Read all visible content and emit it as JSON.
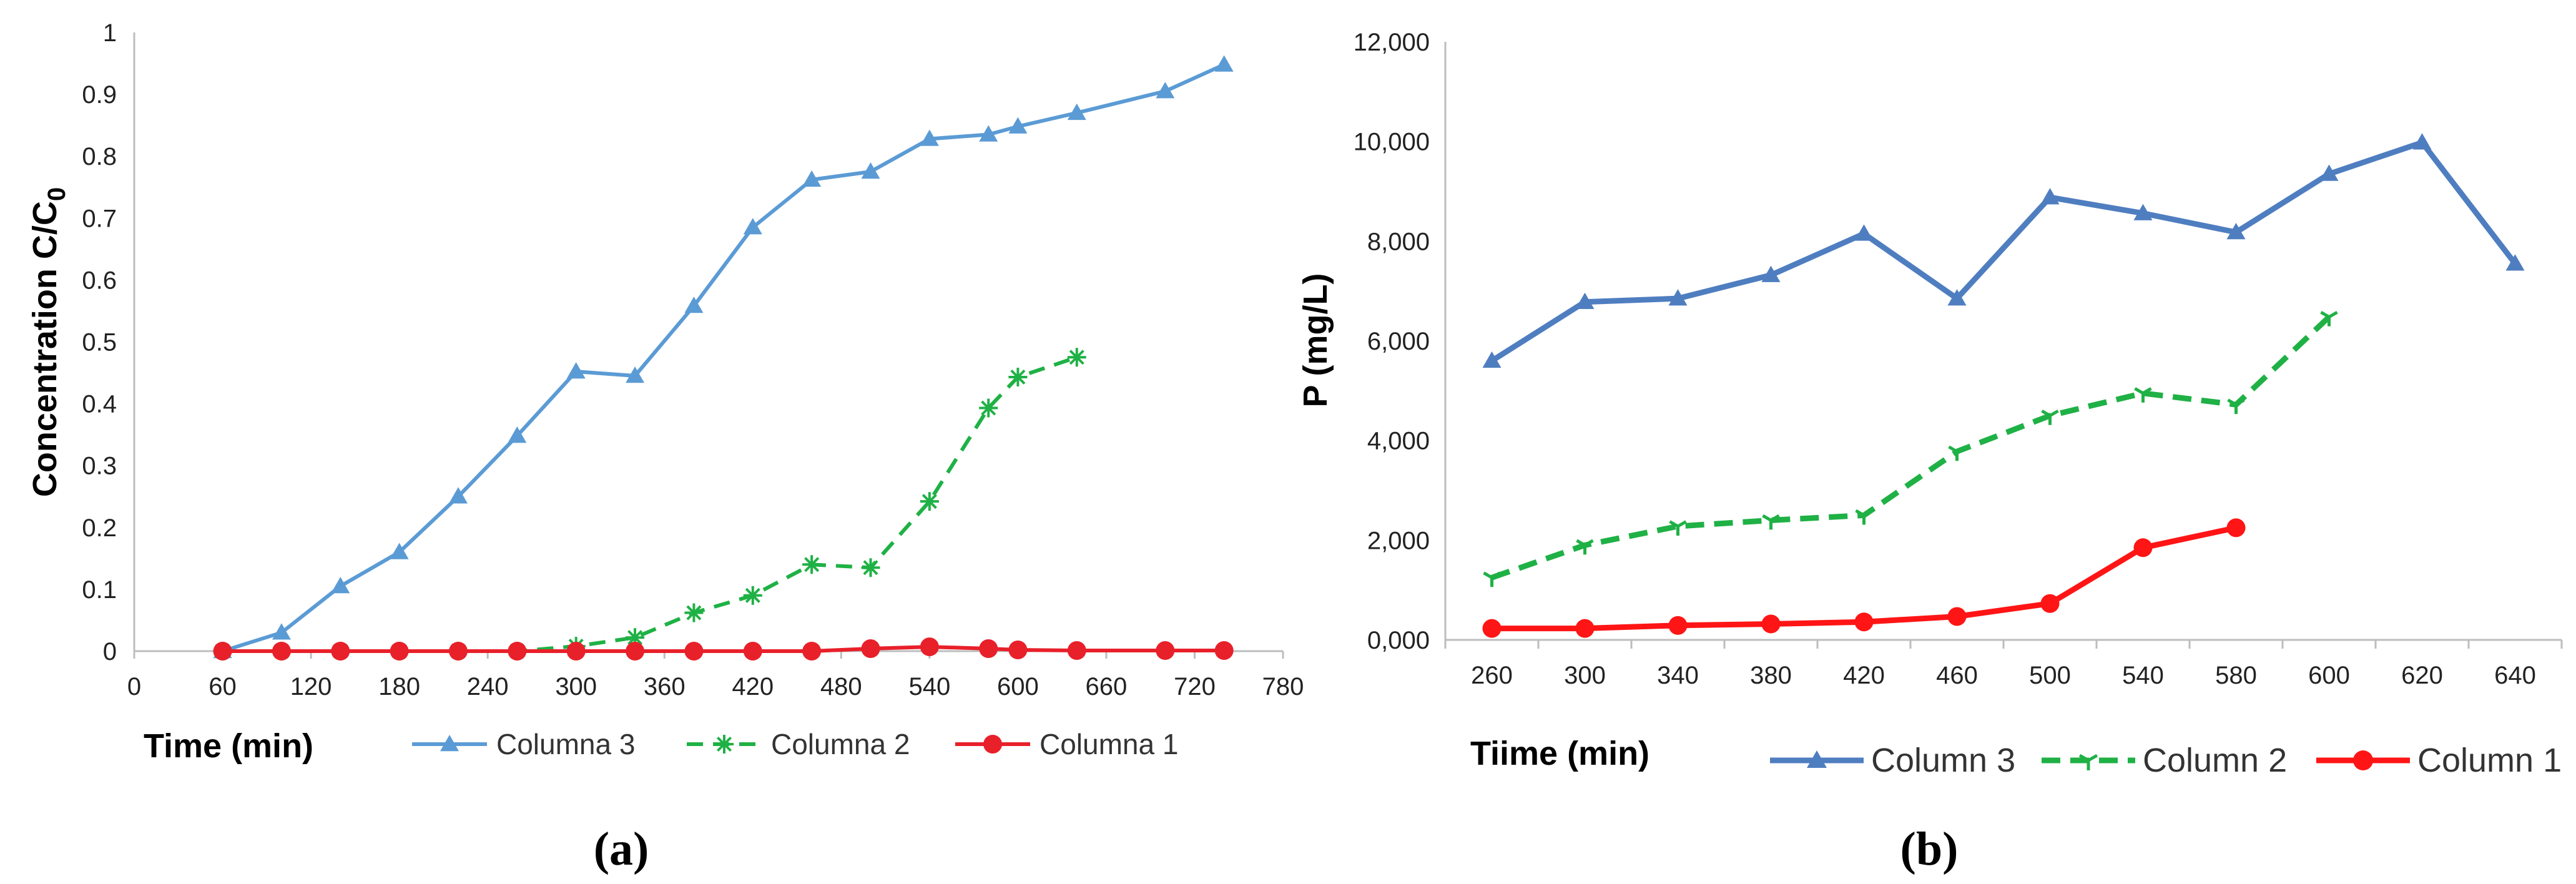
{
  "chart_data": [
    {
      "type": "line",
      "panel_label": "(a)",
      "xlabel": "Time (min)",
      "ylabel": "Concentration C/C",
      "ylabel_sub": "0",
      "xlim": [
        0,
        780
      ],
      "ylim": [
        0,
        1
      ],
      "x_ticks": [
        "0",
        "60",
        "120",
        "180",
        "240",
        "300",
        "360",
        "420",
        "480",
        "540",
        "600",
        "660",
        "720",
        "780"
      ],
      "y_ticks": [
        "0",
        "0.1",
        "0.2",
        "0.3",
        "0.4",
        "0.5",
        "0.6",
        "0.7",
        "0.8",
        "0.9",
        "1"
      ],
      "grid": false,
      "legend_position": "bottom",
      "series": [
        {
          "name": "Columna 3",
          "color": "#5b9bd5",
          "dash": "solid",
          "marker": "triangle",
          "points": [
            [
              60,
              0
            ],
            [
              100,
              0.03
            ],
            [
              140,
              0.105
            ],
            [
              180,
              0.16
            ],
            [
              220,
              0.25
            ],
            [
              260,
              0.348
            ],
            [
              300,
              0.452
            ],
            [
              340,
              0.445
            ],
            [
              380,
              0.558
            ],
            [
              420,
              0.685
            ],
            [
              460,
              0.762
            ],
            [
              500,
              0.775
            ],
            [
              540,
              0.828
            ],
            [
              580,
              0.835
            ],
            [
              600,
              0.848
            ],
            [
              640,
              0.87
            ],
            [
              700,
              0.905
            ],
            [
              740,
              0.948
            ]
          ]
        },
        {
          "name": "Columna 2",
          "color": "#1fb145",
          "dash": "dashed",
          "marker": "star",
          "points": [
            [
              60,
              0
            ],
            [
              100,
              0
            ],
            [
              140,
              0
            ],
            [
              180,
              0
            ],
            [
              220,
              0
            ],
            [
              260,
              0
            ],
            [
              300,
              0.008
            ],
            [
              340,
              0.022
            ],
            [
              380,
              0.062
            ],
            [
              420,
              0.09
            ],
            [
              460,
              0.14
            ],
            [
              500,
              0.135
            ],
            [
              540,
              0.242
            ],
            [
              580,
              0.393
            ],
            [
              600,
              0.443
            ],
            [
              640,
              0.475
            ]
          ]
        },
        {
          "name": "Columna 1",
          "color": "#e8202a",
          "dash": "solid",
          "marker": "circle",
          "points": [
            [
              60,
              0
            ],
            [
              100,
              0
            ],
            [
              140,
              0
            ],
            [
              180,
              0
            ],
            [
              220,
              0
            ],
            [
              260,
              0
            ],
            [
              300,
              0
            ],
            [
              340,
              0
            ],
            [
              380,
              0
            ],
            [
              420,
              0
            ],
            [
              460,
              0
            ],
            [
              500,
              0.004
            ],
            [
              540,
              0.007
            ],
            [
              580,
              0.004
            ],
            [
              600,
              0.002
            ],
            [
              640,
              0.001
            ],
            [
              700,
              0.001
            ],
            [
              740,
              0.001
            ]
          ]
        }
      ]
    },
    {
      "type": "line",
      "panel_label": "(b)",
      "xlabel": "Tiime (min)",
      "ylabel": "P (mg/L)",
      "categories": [
        "260",
        "300",
        "340",
        "380",
        "420",
        "460",
        "500",
        "540",
        "580",
        "600",
        "620",
        "640"
      ],
      "ylim": [
        0,
        12000
      ],
      "y_ticks": [
        "0,000",
        "2,000",
        "4,000",
        "6,000",
        "8,000",
        "10,000",
        "12,000"
      ],
      "grid": false,
      "legend_position": "bottom",
      "series": [
        {
          "name": "Column 3",
          "color": "#4f7ec0",
          "dash": "solid",
          "marker": "triangle",
          "values": [
            5600,
            6780,
            6850,
            7320,
            8150,
            6850,
            8880,
            8560,
            8180,
            9350,
            9980,
            7550
          ]
        },
        {
          "name": "Column 2",
          "color": "#1fb145",
          "dash": "dashed",
          "marker": "tri-star",
          "values": [
            1250,
            1900,
            2280,
            2400,
            2500,
            3780,
            4500,
            4950,
            4720,
            6480,
            null,
            null
          ]
        },
        {
          "name": "Column 1",
          "color": "#ff1515",
          "dash": "solid",
          "marker": "circle",
          "values": [
            230,
            230,
            290,
            320,
            360,
            470,
            730,
            1850,
            2250,
            null,
            null,
            null
          ]
        }
      ]
    }
  ]
}
